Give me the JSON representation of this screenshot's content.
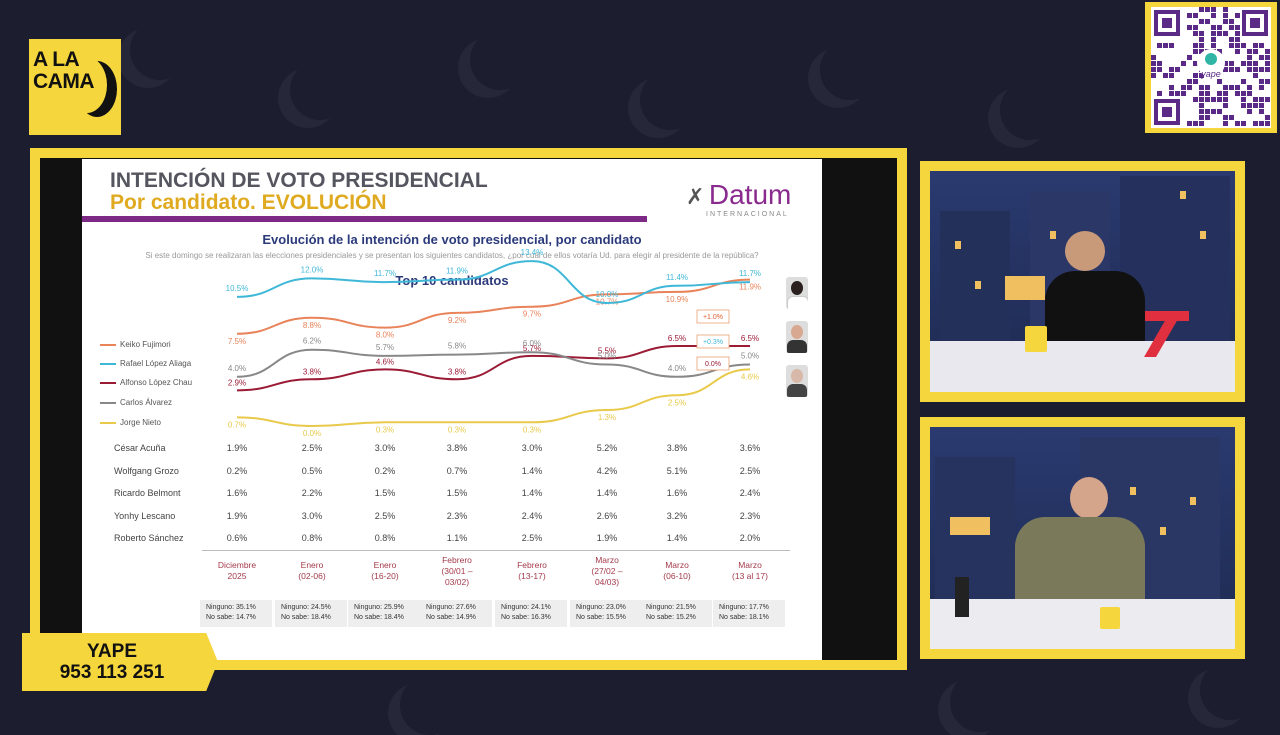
{
  "brand": {
    "logo_line1": "A LA",
    "logo_line2": "CAMA",
    "qr_label": "yape"
  },
  "slide": {
    "title1": "INTENCIÓN DE VOTO PRESIDENCIAL",
    "title2": "Por candidato. EVOLUCIÓN",
    "source_logo": "Datum",
    "source_sub": "INTERNACIONAL",
    "chart_title": "Evolución de la intención de voto presidencial, por candidato",
    "question": "Si este domingo se realizaran las elecciones presidenciales y se presentan los siguientes candidatos, ¿por cuál de ellos votaría Ud. para elegir al presidente de la república?",
    "subtitle": "Top 10  candidatos"
  },
  "chart_data": {
    "type": "line",
    "categories": [
      "Diciembre 2025",
      "Enero (02-06)",
      "Enero (16-20)",
      "Febrero (30/01 – 03/02)",
      "Febrero (13-17)",
      "Marzo (27/02 – 04/03)",
      "Marzo (06-10)",
      "Marzo (13 al 17)"
    ],
    "series": [
      {
        "name": "Keiko Fujimori",
        "color": "#e8835a",
        "values": [
          7.5,
          8.8,
          8.0,
          9.2,
          9.7,
          10.7,
          10.9,
          11.9
        ],
        "labels": [
          "7.5%",
          "8.8%",
          "8.0%",
          "9.2%",
          "9.7%",
          "10.7%",
          "10.9%",
          "11.9%"
        ]
      },
      {
        "name": "Rafael López Aliaga",
        "color": "#3fb8d8",
        "values": [
          10.5,
          12.0,
          11.7,
          11.9,
          13.4,
          10.0,
          11.4,
          11.7
        ],
        "labels": [
          "10.5%",
          "12.0%",
          "11.7%",
          "11.9%",
          "13.4%",
          "10.0%",
          "11.4%",
          "11.7%"
        ]
      },
      {
        "name": "Alfonso López Chau",
        "color": "#9b1b35",
        "values": [
          2.9,
          3.8,
          4.6,
          3.8,
          5.7,
          5.5,
          6.5,
          6.5
        ],
        "labels": [
          "2.9%",
          "3.8%",
          "4.6%",
          "3.8%",
          "5.7%",
          "5.5%",
          "6.5%",
          "6.5%"
        ]
      },
      {
        "name": "Carlos Álvarez",
        "color": "#888888",
        "values": [
          4.0,
          6.2,
          5.7,
          5.8,
          6.0,
          5.0,
          4.0,
          5.0
        ],
        "labels": [
          "4.0%",
          "6.2%",
          "5.7%",
          "5.8%",
          "6.0%",
          "5.0%",
          "4.0%",
          "5.0%"
        ]
      },
      {
        "name": "Jorge Nieto",
        "color": "#e8c94a",
        "values": [
          0.7,
          0.0,
          0.3,
          0.3,
          0.3,
          1.3,
          2.5,
          4.6
        ],
        "labels": [
          "0.7%",
          "0.0%",
          "0.3%",
          "0.3%",
          "0.3%",
          "1.3%",
          "2.5%",
          "4.6%"
        ]
      }
    ],
    "changes": [
      "+1.0%",
      "+0.3%",
      "0.0%"
    ],
    "table": [
      {
        "name": "César Acuña",
        "values": [
          "1.9%",
          "2.5%",
          "3.0%",
          "3.8%",
          "3.0%",
          "5.2%",
          "3.8%",
          "3.6%"
        ]
      },
      {
        "name": "Wolfgang Grozo",
        "values": [
          "0.2%",
          "0.5%",
          "0.2%",
          "0.7%",
          "1.4%",
          "4.2%",
          "5.1%",
          "2.5%"
        ]
      },
      {
        "name": "Ricardo Belmont",
        "values": [
          "1.6%",
          "2.2%",
          "1.5%",
          "1.5%",
          "1.4%",
          "1.4%",
          "1.6%",
          "2.4%"
        ]
      },
      {
        "name": "Yonhy Lescano",
        "values": [
          "1.9%",
          "3.0%",
          "2.5%",
          "2.3%",
          "2.4%",
          "2.6%",
          "3.2%",
          "2.3%"
        ]
      },
      {
        "name": "Roberto Sánchez",
        "values": [
          "0.6%",
          "0.8%",
          "0.8%",
          "1.1%",
          "2.5%",
          "1.9%",
          "1.4%",
          "2.0%"
        ]
      }
    ],
    "date_lines": [
      [
        "Diciembre",
        "2025"
      ],
      [
        "Enero",
        "(02-06)"
      ],
      [
        "Enero",
        "(16-20)"
      ],
      [
        "Febrero",
        "(30/01 –",
        "03/02)"
      ],
      [
        "Febrero",
        "(13-17)"
      ],
      [
        "Marzo",
        "(27/02 –",
        "04/03)"
      ],
      [
        "Marzo",
        "(06-10)"
      ],
      [
        "Marzo",
        "(13 al 17)"
      ]
    ],
    "ninguno": [
      "35.1%",
      "24.5%",
      "25.9%",
      "27.6%",
      "24.1%",
      "23.0%",
      "21.5%",
      "17.7%"
    ],
    "nosabe": [
      "14.7%",
      "18.4%",
      "18.4%",
      "14.9%",
      "16.3%",
      "15.5%",
      "15.2%",
      "18.1%"
    ],
    "ninguno_label": "Ninguno:",
    "nosabe_label": "No sabe:"
  },
  "donation": {
    "line1": "YAPE",
    "line2": "953 113 251"
  },
  "colors": {
    "accent": "#f5d63c",
    "background": "#1c1d2e",
    "brand_purple": "#7d2a87"
  }
}
